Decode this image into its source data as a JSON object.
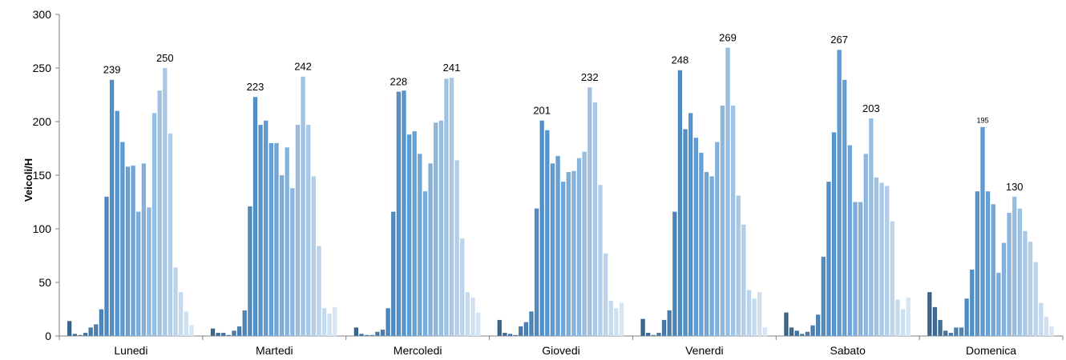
{
  "chart_data": {
    "type": "bar",
    "title": "",
    "xlabel": "",
    "ylabel": "Veicoli/H",
    "ylim": [
      0,
      300
    ],
    "yticks": [
      0,
      50,
      100,
      150,
      200,
      250,
      300
    ],
    "grid": false,
    "legend": "none",
    "colors": {
      "dark": "#1f4e79",
      "mid": "#3e86c8",
      "light": "#d2e2f2"
    },
    "categories": [
      "Lunedi",
      "Martedi",
      "Mercoledi",
      "Giovedi",
      "Venerdi",
      "Sabato",
      "Domenica"
    ],
    "groups": [
      {
        "name": "Lunedi",
        "values": [
          14,
          2,
          1,
          3,
          8,
          11,
          25,
          130,
          239,
          210,
          181,
          158,
          159,
          116,
          161,
          120,
          208,
          229,
          250,
          189,
          64,
          41,
          23,
          10
        ],
        "labels": [
          {
            "index": 8,
            "text": "239"
          },
          {
            "index": 18,
            "text": "250"
          }
        ]
      },
      {
        "name": "Martedi",
        "values": [
          7,
          3,
          3,
          1,
          5,
          9,
          24,
          121,
          223,
          197,
          201,
          180,
          180,
          150,
          176,
          138,
          197,
          242,
          197,
          149,
          84,
          26,
          21,
          27
        ],
        "labels": [
          {
            "index": 8,
            "text": "223"
          },
          {
            "index": 17,
            "text": "242"
          }
        ]
      },
      {
        "name": "Mercoledi",
        "values": [
          8,
          2,
          1,
          1,
          4,
          6,
          26,
          116,
          228,
          229,
          188,
          191,
          170,
          135,
          161,
          199,
          201,
          240,
          241,
          164,
          91,
          41,
          36,
          22
        ],
        "labels": [
          {
            "index": 8,
            "text": "228"
          },
          {
            "index": 18,
            "text": "241"
          }
        ]
      },
      {
        "name": "Giovedi",
        "values": [
          15,
          3,
          2,
          1,
          9,
          13,
          23,
          119,
          201,
          192,
          161,
          168,
          144,
          153,
          154,
          166,
          172,
          232,
          218,
          141,
          77,
          33,
          26,
          31
        ],
        "labels": [
          {
            "index": 8,
            "text": "201"
          },
          {
            "index": 17,
            "text": "232"
          }
        ]
      },
      {
        "name": "Venerdi",
        "values": [
          16,
          3,
          1,
          3,
          15,
          24,
          116,
          248,
          193,
          208,
          185,
          171,
          153,
          149,
          181,
          215,
          269,
          215,
          131,
          104,
          43,
          35,
          41,
          8
        ],
        "labels": [
          {
            "index": 7,
            "text": "248"
          },
          {
            "index": 16,
            "text": "269"
          }
        ]
      },
      {
        "name": "Sabato",
        "values": [
          22,
          8,
          5,
          2,
          4,
          10,
          20,
          74,
          144,
          190,
          267,
          239,
          178,
          125,
          125,
          170,
          203,
          148,
          143,
          140,
          107,
          34,
          25,
          36
        ],
        "labels": [
          {
            "index": 10,
            "text": "267"
          },
          {
            "index": 16,
            "text": "203"
          }
        ]
      },
      {
        "name": "Domenica",
        "values": [
          41,
          27,
          15,
          5,
          3,
          8,
          8,
          35,
          62,
          135,
          195,
          135,
          123,
          59,
          87,
          115,
          130,
          119,
          98,
          88,
          69,
          31,
          18,
          9
        ],
        "labels": [
          {
            "index": 10,
            "text": "195",
            "small": true
          },
          {
            "index": 16,
            "text": "130"
          }
        ]
      }
    ]
  }
}
